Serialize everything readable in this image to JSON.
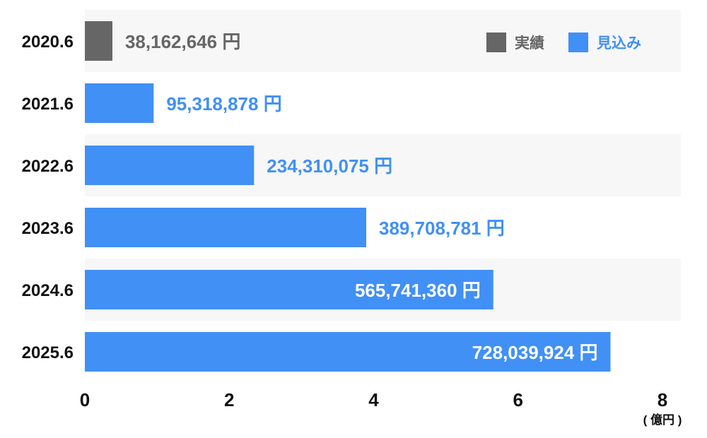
{
  "chart_data": {
    "type": "bar",
    "orientation": "horizontal",
    "categories": [
      "2020.6",
      "2021.6",
      "2022.6",
      "2023.6",
      "2024.6",
      "2025.6"
    ],
    "values": [
      38162646,
      95318878,
      234310075,
      389708781,
      565741360,
      728039924
    ],
    "value_labels": [
      "38,162,646 円",
      "95,318,878 円",
      "234,310,075 円",
      "389,708,781 円",
      "565,741,360 円",
      "728,039,924 円"
    ],
    "bar_kind": [
      "actual",
      "forecast",
      "forecast",
      "forecast",
      "forecast",
      "forecast"
    ],
    "xlim": [
      0,
      8
    ],
    "xticks": [
      "0",
      "2",
      "4",
      "6",
      "8"
    ],
    "xunit_label": "( 億円 )",
    "legend": [
      {
        "key": "actual",
        "label": "実績",
        "color": "#666666"
      },
      {
        "key": "forecast",
        "label": "見込み",
        "color": "#4190f5"
      }
    ],
    "legend_position": "top-right",
    "grid": false,
    "row_band_colors": [
      "#f7f7f7",
      "#ffffff"
    ]
  }
}
